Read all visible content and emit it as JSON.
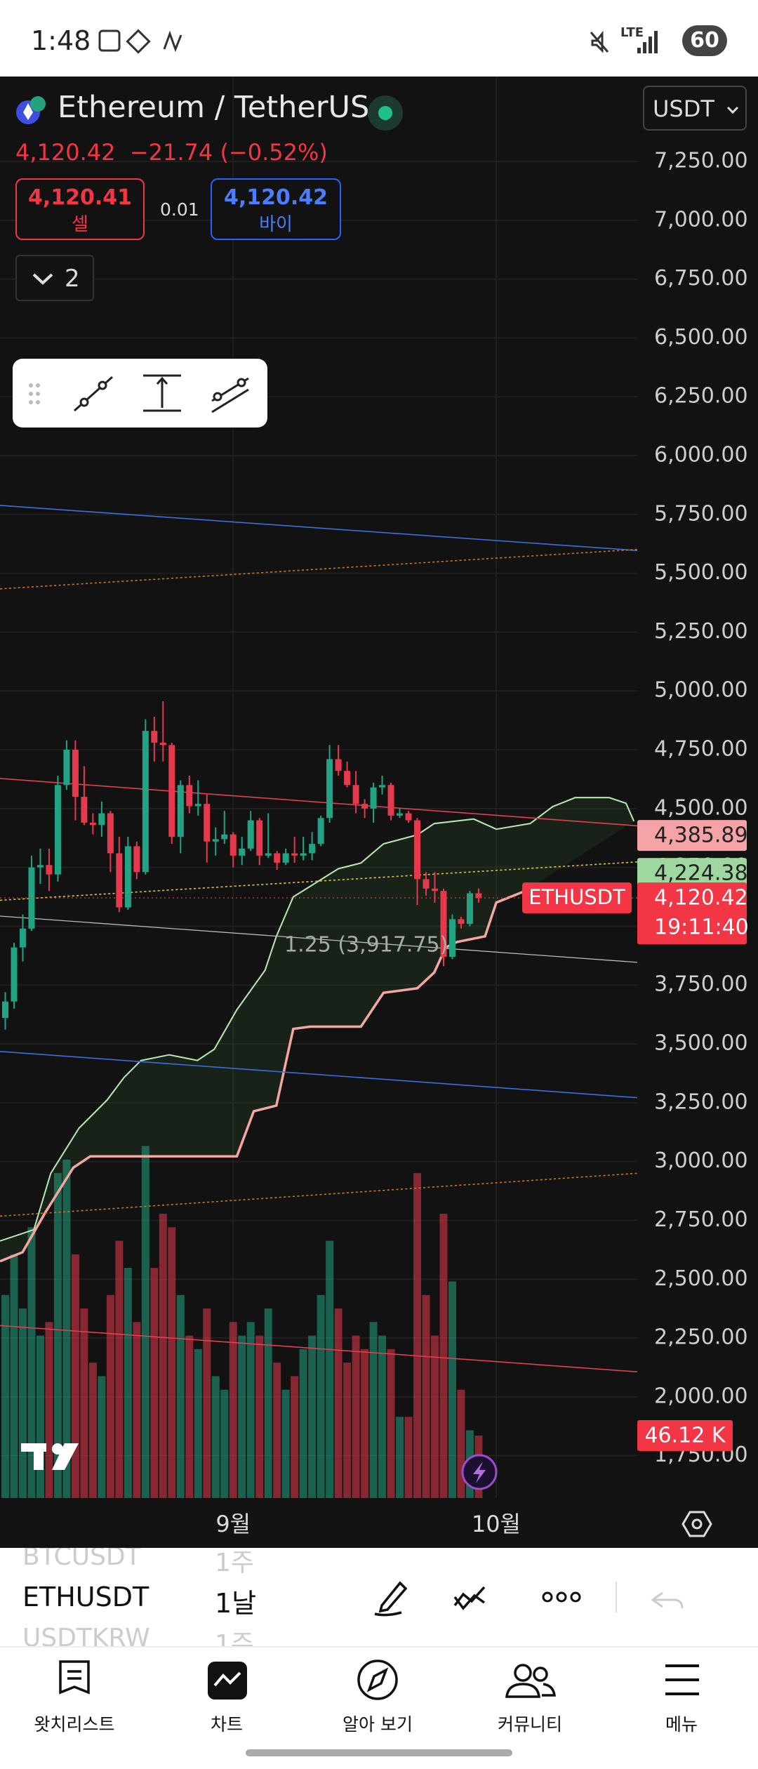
{
  "status_bar": {
    "time": "1:48",
    "network": "LTE",
    "battery": "60"
  },
  "header": {
    "symbol": "Ethereum / TetherUS",
    "currency": "USDT",
    "last": "4,120.42",
    "change": "−21.74",
    "change_pct": "(−0.52%)",
    "sell_price": "4,120.41",
    "sell_label": "셀",
    "spread": "0.01",
    "buy_price": "4,120.42",
    "buy_label": "바이",
    "indicator_count": "2"
  },
  "chart_data": {
    "type": "candlestick",
    "up_color": "#22a383",
    "down_color": "#e5394d",
    "grid": true,
    "xlim": [
      -0.6,
      72.1
    ],
    "xticks": [
      {
        "value": 26,
        "label": "9월"
      },
      {
        "value": 56,
        "label": "10월"
      }
    ],
    "ylim": [
      1570,
      7611
    ],
    "yticks": [
      {
        "value": 7250,
        "label": "7,250.00"
      },
      {
        "value": 7000,
        "label": "7,000.00"
      },
      {
        "value": 6750,
        "label": "6,750.00"
      },
      {
        "value": 6500,
        "label": "6,500.00"
      },
      {
        "value": 6250,
        "label": "6,250.00"
      },
      {
        "value": 6000,
        "label": "6,000.00"
      },
      {
        "value": 5750,
        "label": "5,750.00"
      },
      {
        "value": 5500,
        "label": "5,500.00"
      },
      {
        "value": 5250,
        "label": "5,250.00"
      },
      {
        "value": 5000,
        "label": "5,000.00"
      },
      {
        "value": 4750,
        "label": "4,750.00"
      },
      {
        "value": 4500,
        "label": "4,500.00"
      },
      {
        "value": 4250,
        "label": "4,250.00"
      },
      {
        "value": 4000,
        "label": "4,000.00"
      },
      {
        "value": 3750,
        "label": "3,750.00"
      },
      {
        "value": 3500,
        "label": "3,500.00"
      },
      {
        "value": 3250,
        "label": "3,250.00"
      },
      {
        "value": 3000,
        "label": "3,000.00"
      },
      {
        "value": 2750,
        "label": "2,750.00"
      },
      {
        "value": 2500,
        "label": "2,500.00"
      },
      {
        "value": 2250,
        "label": "2,250.00"
      },
      {
        "value": 2000,
        "label": "2,000.00"
      },
      {
        "value": 1750,
        "label": "1,750.00"
      }
    ],
    "series": [
      {
        "name": "ETHUSDT",
        "open": [
          3610,
          3680,
          3910,
          3990,
          4250,
          4260,
          4220,
          4600,
          4750,
          4550,
          4440,
          4430,
          4480,
          4310,
          4080,
          4340,
          4230,
          4830,
          4780,
          4770,
          4380,
          4600,
          4510,
          4520,
          4360,
          4370,
          4390,
          4300,
          4330,
          4450,
          4300,
          4310,
          4270,
          4310,
          4300,
          4310,
          4350,
          4460,
          4710,
          4660,
          4600,
          4520,
          4500,
          4590,
          4600,
          4470,
          4480,
          4450,
          4200,
          4160,
          4150,
          3870,
          4030,
          4010,
          4140
        ],
        "high": [
          3720,
          3930,
          4050,
          4300,
          4330,
          4330,
          4640,
          4790,
          4790,
          4680,
          4480,
          4530,
          4490,
          4380,
          4380,
          4360,
          4880,
          4890,
          4956,
          4780,
          4620,
          4640,
          4620,
          4560,
          4420,
          4490,
          4400,
          4380,
          4490,
          4460,
          4480,
          4320,
          4330,
          4380,
          4380,
          4400,
          4470,
          4770,
          4770,
          4700,
          4660,
          4540,
          4610,
          4640,
          4610,
          4500,
          4490,
          4460,
          4230,
          4230,
          4160,
          4050,
          4040,
          4150,
          4160
        ],
        "low": [
          3560,
          3650,
          3850,
          3980,
          4180,
          4150,
          4190,
          4580,
          4450,
          4430,
          4390,
          4380,
          4230,
          4060,
          4070,
          4200,
          4220,
          4700,
          4700,
          4350,
          4310,
          4480,
          4470,
          4270,
          4300,
          4350,
          4250,
          4260,
          4320,
          4260,
          4290,
          4240,
          4260,
          4270,
          4280,
          4280,
          4340,
          4440,
          4640,
          4590,
          4480,
          4460,
          4440,
          4560,
          4450,
          4460,
          4440,
          4090,
          4130,
          4100,
          3830,
          3860,
          3990,
          4000,
          4100
        ],
        "close": [
          3680,
          3910,
          3990,
          4250,
          4260,
          4220,
          4600,
          4750,
          4550,
          4440,
          4430,
          4480,
          4310,
          4080,
          4340,
          4230,
          4830,
          4780,
          4770,
          4380,
          4600,
          4510,
          4520,
          4360,
          4370,
          4390,
          4300,
          4330,
          4450,
          4300,
          4310,
          4270,
          4310,
          4300,
          4310,
          4350,
          4460,
          4710,
          4660,
          4600,
          4520,
          4500,
          4590,
          4600,
          4470,
          4480,
          4450,
          4200,
          4160,
          4150,
          3870,
          4030,
          4010,
          4140,
          4120.42
        ]
      }
    ],
    "volume": {
      "ylim": [
        0,
        1050
      ],
      "values": [
        150,
        180,
        140,
        200,
        120,
        130,
        240,
        250,
        180,
        140,
        100,
        90,
        150,
        190,
        170,
        130,
        260,
        170,
        210,
        200,
        150,
        120,
        110,
        140,
        90,
        80,
        130,
        120,
        130,
        120,
        140,
        100,
        80,
        90,
        110,
        120,
        150,
        190,
        140,
        100,
        120,
        110,
        130,
        120,
        110,
        60,
        60,
        240,
        150,
        120,
        210,
        160,
        80,
        50,
        46.12
      ]
    },
    "volume_label": {
      "value": 46.12,
      "label": "46.12 K"
    },
    "price_tags": [
      {
        "value": 4385.89,
        "label": "4,385.89",
        "color": "#f5a3a6"
      },
      {
        "value": 4224.38,
        "label": "4,224.38",
        "color": "#9fd89f"
      }
    ],
    "last_price": {
      "value": 4120.42,
      "label": "4,120.42",
      "countdown": "19:11:40",
      "color": "#f23645"
    },
    "annotation": {
      "value": 3917.75,
      "label": "1.25 (3,917.75)"
    }
  },
  "symbol_list": [
    {
      "symbol": "BTCUSDT",
      "interval": "1주"
    },
    {
      "symbol": "ETHUSDT",
      "interval": "1날"
    },
    {
      "symbol": "USDTKRW",
      "interval": "1주"
    }
  ],
  "nav": [
    "왓치리스트",
    "차트",
    "알아 보기",
    "커뮤니티",
    "메뉴"
  ]
}
